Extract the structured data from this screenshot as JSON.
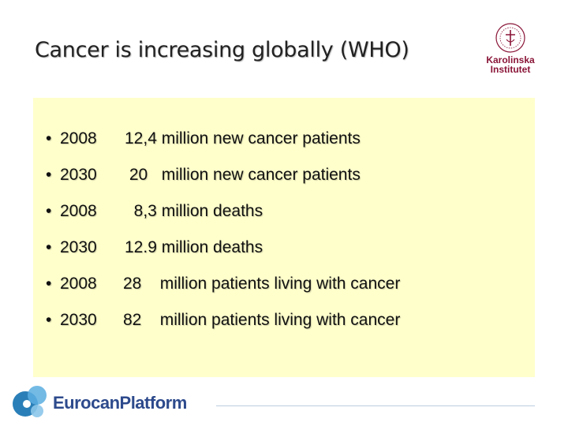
{
  "slide": {
    "title": "Cancer is increasing globally (WHO)"
  },
  "logos": {
    "institute_line1": "Karolinska",
    "institute_line2": "Institutet",
    "footer_brand": "EurocanPlatform",
    "institute_color": "#8a1538",
    "footer_color": "#2d4a8c"
  },
  "bullets": [
    {
      "year": "2008",
      "text": "12,4 million new cancer patients"
    },
    {
      "year": "2030",
      "text": " 20   million new cancer patients"
    },
    {
      "year": "2008",
      "text": "  8,3 million deaths"
    },
    {
      "year": "2030",
      "text": "12.9 million deaths"
    },
    {
      "year": "2008",
      "text": "28    million patients living with cancer"
    },
    {
      "year": "2030",
      "text": "82    million patients living with cancer"
    }
  ],
  "content_background": "#ffffcc"
}
